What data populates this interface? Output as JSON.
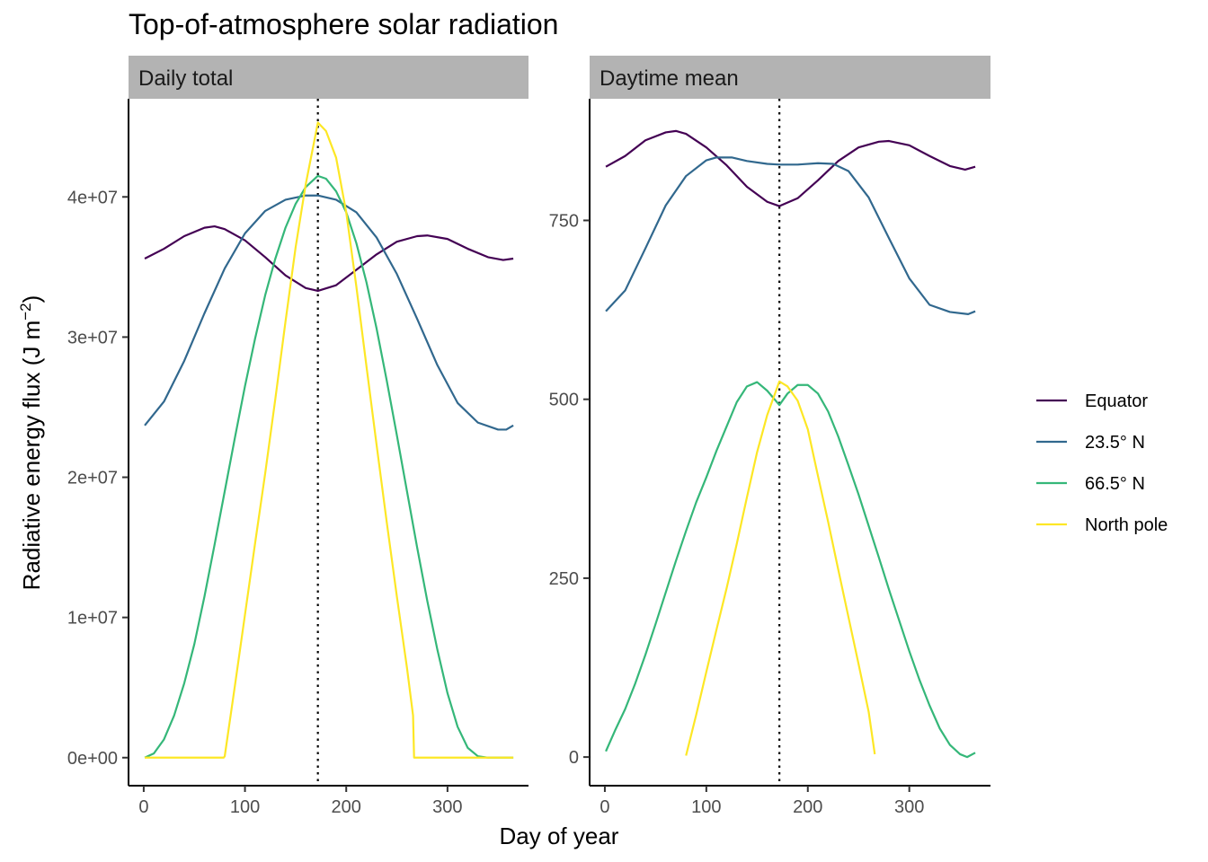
{
  "chart_data": {
    "type": "line",
    "title": "Top-of-atmosphere solar radiation",
    "xlabel": "Day of year",
    "ylabel": "Radiative energy flux (J m",
    "ylabel_sup": "−2",
    "ylabel_end": ")",
    "grid": false,
    "legend_position": "right",
    "reference_line": {
      "x": 172,
      "style": "dotted",
      "color": "#000000"
    },
    "series_styles": [
      {
        "name": "Equator",
        "color": "#440154"
      },
      {
        "name": "23.5° N",
        "color": "#31688E"
      },
      {
        "name": "66.5° N",
        "color": "#35B779"
      },
      {
        "name": "North pole",
        "color": "#FDE725"
      }
    ],
    "panels": [
      {
        "strip": "Daily total",
        "xlim": [
          -15,
          380
        ],
        "ylim": [
          -2000000,
          47000000
        ],
        "x_ticks": [
          0,
          100,
          200,
          300
        ],
        "x_tick_labels": [
          "0",
          "100",
          "200",
          "300"
        ],
        "y_ticks": [
          0,
          10000000,
          20000000,
          30000000,
          40000000
        ],
        "y_tick_labels": [
          "0e+00",
          "1e+07",
          "2e+07",
          "3e+07",
          "4e+07"
        ],
        "series": [
          {
            "name": "Equator",
            "x": [
              1,
              20,
              40,
              60,
              70,
              80,
              100,
              120,
              140,
              160,
              172,
              190,
              210,
              230,
              250,
              270,
              280,
              300,
              320,
              340,
              355,
              365
            ],
            "values": [
              35600000,
              36300000,
              37200000,
              37800000,
              37900000,
              37700000,
              36900000,
              35700000,
              34400000,
              33500000,
              33300000,
              33700000,
              34800000,
              35900000,
              36800000,
              37200000,
              37250000,
              37000000,
              36300000,
              35700000,
              35500000,
              35600000
            ]
          },
          {
            "name": "23.5° N",
            "x": [
              1,
              20,
              40,
              60,
              80,
              100,
              120,
              140,
              160,
              172,
              190,
              210,
              230,
              250,
              270,
              290,
              310,
              330,
              350,
              358,
              365
            ],
            "values": [
              23700000,
              25400000,
              28300000,
              31700000,
              34900000,
              37400000,
              39000000,
              39800000,
              40100000,
              40100000,
              39800000,
              38900000,
              37100000,
              34500000,
              31300000,
              28000000,
              25300000,
              23900000,
              23400000,
              23400000,
              23700000
            ]
          },
          {
            "name": "66.5° N",
            "x": [
              1,
              10,
              20,
              30,
              40,
              50,
              60,
              70,
              80,
              90,
              100,
              110,
              120,
              130,
              140,
              150,
              160,
              172,
              180,
              190,
              200,
              210,
              220,
              230,
              240,
              250,
              260,
              270,
              280,
              290,
              300,
              310,
              320,
              330,
              340,
              350,
              358,
              365
            ],
            "values": [
              0,
              300000,
              1300000,
              3000000,
              5300000,
              8100000,
              11500000,
              15200000,
              19000000,
              22800000,
              26500000,
              29900000,
              33000000,
              35600000,
              37800000,
              39500000,
              40700000,
              41500000,
              41300000,
              40400000,
              38900000,
              36700000,
              33900000,
              30600000,
              26900000,
              23000000,
              19000000,
              15000000,
              11200000,
              7700000,
              4600000,
              2200000,
              700000,
              100000,
              0,
              0,
              0,
              0
            ]
          },
          {
            "name": "North pole",
            "x": [
              1,
              20,
              40,
              60,
              79,
              80,
              90,
              100,
              110,
              120,
              130,
              140,
              150,
              160,
              172,
              180,
              190,
              200,
              210,
              220,
              230,
              240,
              250,
              260,
              266,
              267,
              280,
              300,
              320,
              340,
              365
            ],
            "values": [
              0,
              0,
              0,
              0,
              0,
              100000,
              5100000,
              10200000,
              15300000,
              20300000,
              25600000,
              31100000,
              36400000,
              40900000,
              45300000,
              44700000,
              42800000,
              38900000,
              33600000,
              27900000,
              22300000,
              16800000,
              11500000,
              6400000,
              3000000,
              0,
              0,
              0,
              0,
              0,
              0
            ]
          }
        ]
      },
      {
        "strip": "Daytime mean",
        "xlim": [
          -15,
          380
        ],
        "ylim": [
          -40,
          920
        ],
        "x_ticks": [
          0,
          100,
          200,
          300
        ],
        "x_tick_labels": [
          "0",
          "100",
          "200",
          "300"
        ],
        "y_ticks": [
          0,
          250,
          500,
          750
        ],
        "y_tick_labels": [
          "0",
          "250",
          "500",
          "750"
        ],
        "series": [
          {
            "name": "Equator",
            "x": [
              1,
              20,
              40,
              60,
              70,
              80,
              100,
              120,
              140,
              160,
              172,
              190,
              210,
              230,
              250,
              270,
              280,
              300,
              320,
              340,
              355,
              365
            ],
            "values": [
              825,
              840,
              862,
              873,
              875,
              871,
              852,
              827,
              797,
              776,
              770,
              781,
              806,
              833,
              852,
              860,
              861,
              855,
              840,
              826,
              821,
              825
            ]
          },
          {
            "name": "23.5° N",
            "x": [
              1,
              20,
              40,
              60,
              80,
              100,
              110,
              125,
              140,
              160,
              172,
              190,
              210,
              225,
              240,
              260,
              280,
              300,
              320,
              340,
              358,
              365
            ],
            "values": [
              623,
              652,
              711,
              771,
              812,
              834,
              838,
              838,
              833,
              829,
              828,
              828,
              830,
              829,
              819,
              782,
              725,
              669,
              632,
              622,
              619,
              623
            ]
          },
          {
            "name": "66.5° N",
            "x": [
              1,
              10,
              20,
              30,
              40,
              50,
              60,
              70,
              80,
              90,
              100,
              110,
              120,
              130,
              140,
              150,
              160,
              172,
              180,
              190,
              200,
              210,
              220,
              230,
              240,
              250,
              260,
              270,
              280,
              290,
              300,
              310,
              320,
              330,
              340,
              350,
              357,
              365
            ],
            "values": [
              8,
              37,
              67,
              103,
              143,
              186,
              230,
              274,
              316,
              356,
              391,
              428,
              462,
              496,
              518,
              524,
              512,
              492,
              508,
              520,
              520,
              508,
              483,
              448,
              408,
              367,
              323,
              279,
              234,
              191,
              148,
              108,
              72,
              40,
              17,
              4,
              0,
              6
            ]
          },
          {
            "name": "North pole",
            "x": [
              80,
              90,
              100,
              110,
              120,
              130,
              140,
              150,
              160,
              172,
              180,
              190,
              200,
              210,
              220,
              230,
              240,
              250,
              260,
              266
            ],
            "values": [
              2,
              59,
              119,
              178,
              236,
              298,
              363,
              426,
              478,
              525,
              518,
              498,
              458,
              393,
              329,
              262,
              196,
              130,
              63,
              4
            ]
          }
        ]
      }
    ]
  }
}
